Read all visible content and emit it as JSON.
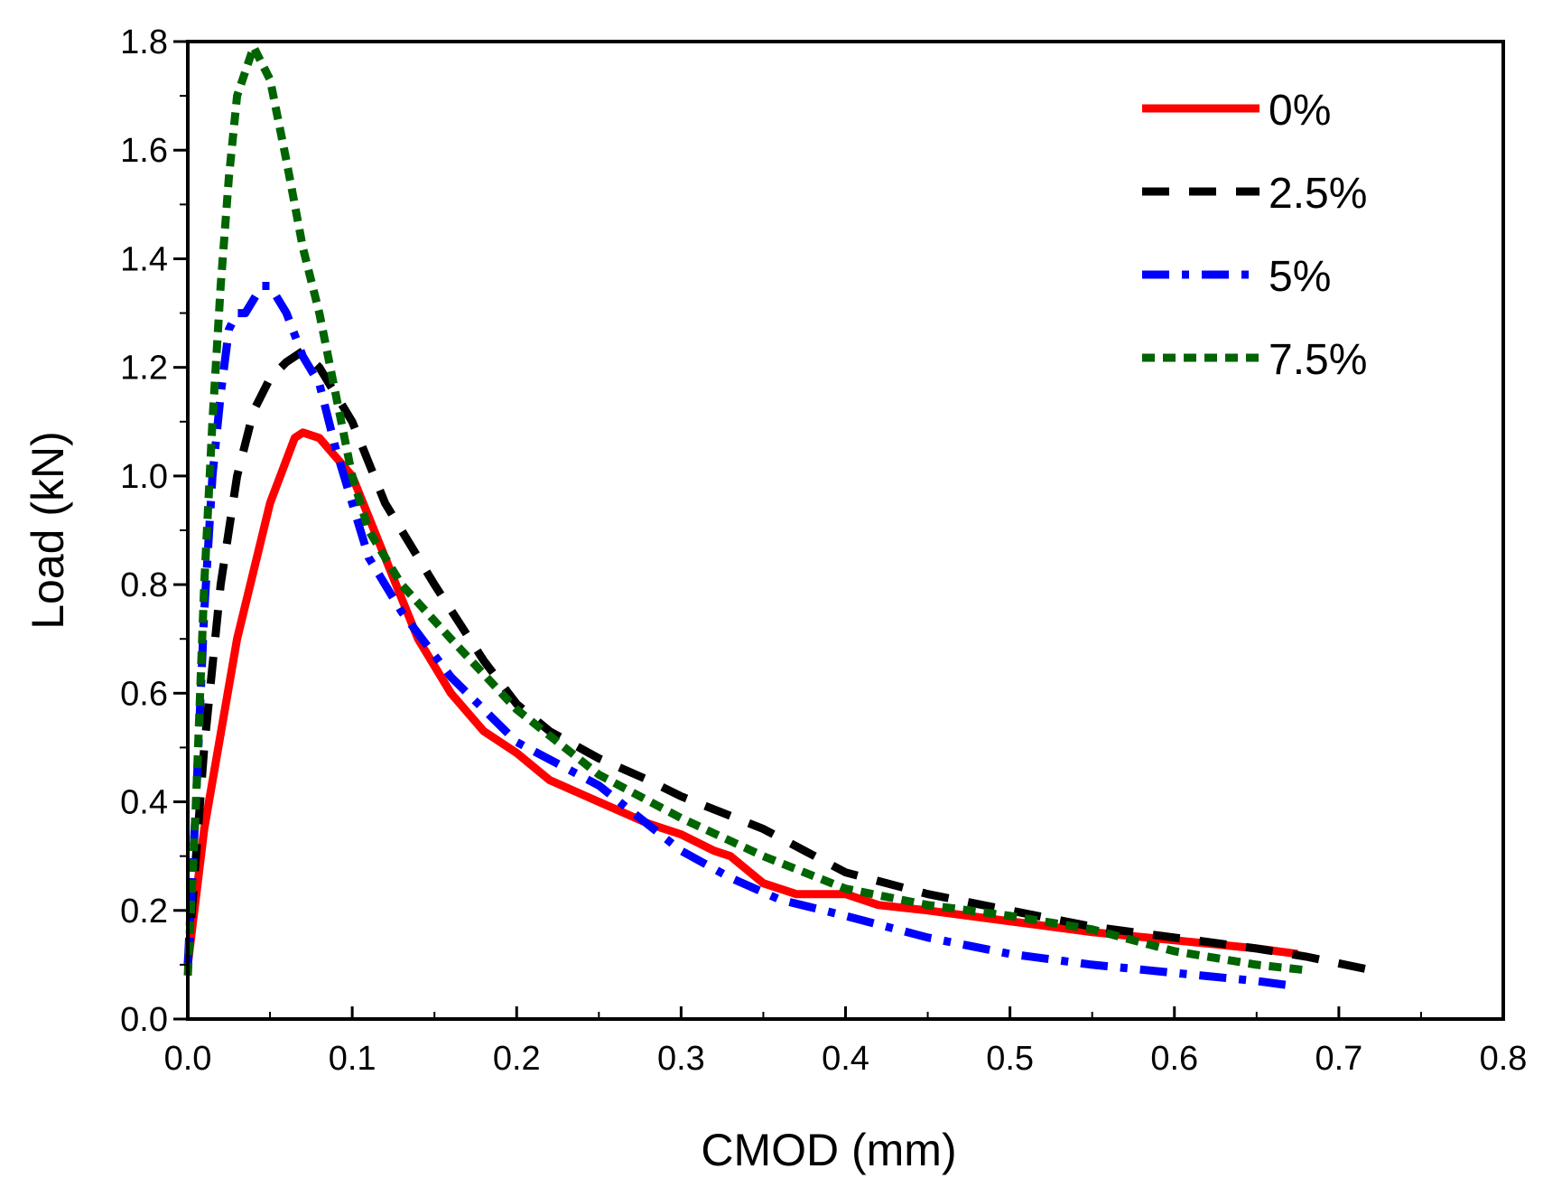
{
  "chart_data": {
    "type": "line",
    "title": "",
    "xlabel": "CMOD (mm)",
    "ylabel": "Load (kN)",
    "xlim": [
      0.0,
      0.8
    ],
    "ylim": [
      0.0,
      1.8
    ],
    "xticks": [
      "0.0",
      "0.1",
      "0.2",
      "0.3",
      "0.4",
      "0.5",
      "0.6",
      "0.7",
      "0.8"
    ],
    "yticks": [
      "0.0",
      "0.2",
      "0.4",
      "0.6",
      "0.8",
      "1.0",
      "1.2",
      "1.4",
      "1.6",
      "1.8"
    ],
    "grid": false,
    "legend_position": "top-right",
    "series": [
      {
        "name": "0%",
        "color": "#ff0000",
        "style": "solid",
        "x": [
          0,
          0.01,
          0.03,
          0.05,
          0.065,
          0.07,
          0.08,
          0.1,
          0.12,
          0.14,
          0.16,
          0.18,
          0.2,
          0.22,
          0.25,
          0.28,
          0.3,
          0.32,
          0.33,
          0.35,
          0.37,
          0.4,
          0.42,
          0.45,
          0.5,
          0.55,
          0.6,
          0.65,
          0.675
        ],
        "y": [
          0.1,
          0.35,
          0.7,
          0.95,
          1.07,
          1.08,
          1.07,
          1.0,
          0.85,
          0.7,
          0.6,
          0.53,
          0.49,
          0.44,
          0.4,
          0.36,
          0.34,
          0.31,
          0.3,
          0.25,
          0.23,
          0.23,
          0.21,
          0.2,
          0.18,
          0.16,
          0.145,
          0.13,
          0.12
        ]
      },
      {
        "name": "2.5%",
        "color": "#000000",
        "style": "dash",
        "x": [
          0,
          0.005,
          0.01,
          0.02,
          0.03,
          0.04,
          0.05,
          0.06,
          0.07,
          0.08,
          0.1,
          0.12,
          0.15,
          0.18,
          0.2,
          0.22,
          0.25,
          0.28,
          0.3,
          0.35,
          0.4,
          0.45,
          0.5,
          0.55,
          0.6,
          0.65,
          0.68,
          0.72
        ],
        "y": [
          0.1,
          0.3,
          0.5,
          0.8,
          1.0,
          1.12,
          1.18,
          1.21,
          1.23,
          1.2,
          1.1,
          0.95,
          0.8,
          0.66,
          0.58,
          0.53,
          0.48,
          0.44,
          0.41,
          0.35,
          0.27,
          0.23,
          0.2,
          0.17,
          0.15,
          0.13,
          0.115,
          0.09
        ]
      },
      {
        "name": "5%",
        "color": "#0000ff",
        "style": "dashdot",
        "x": [
          0,
          0.005,
          0.01,
          0.015,
          0.02,
          0.025,
          0.03,
          0.035,
          0.045,
          0.05,
          0.06,
          0.07,
          0.08,
          0.09,
          0.1,
          0.11,
          0.13,
          0.16,
          0.2,
          0.25,
          0.3,
          0.33,
          0.36,
          0.4,
          0.45,
          0.5,
          0.55,
          0.6,
          0.65,
          0.675
        ],
        "y": [
          0.1,
          0.4,
          0.75,
          1.0,
          1.15,
          1.27,
          1.3,
          1.3,
          1.35,
          1.35,
          1.3,
          1.22,
          1.17,
          1.05,
          0.95,
          0.85,
          0.75,
          0.63,
          0.51,
          0.43,
          0.31,
          0.26,
          0.22,
          0.19,
          0.15,
          0.12,
          0.1,
          0.085,
          0.07,
          0.06
        ]
      },
      {
        "name": "7.5%",
        "color": "#006400",
        "style": "shortdash",
        "x": [
          0,
          0.005,
          0.01,
          0.015,
          0.02,
          0.025,
          0.03,
          0.04,
          0.05,
          0.06,
          0.07,
          0.08,
          0.09,
          0.1,
          0.11,
          0.13,
          0.16,
          0.2,
          0.25,
          0.3,
          0.35,
          0.4,
          0.45,
          0.5,
          0.55,
          0.6,
          0.65,
          0.68
        ],
        "y": [
          0.08,
          0.4,
          0.8,
          1.1,
          1.35,
          1.55,
          1.7,
          1.79,
          1.73,
          1.58,
          1.42,
          1.3,
          1.15,
          1.0,
          0.9,
          0.8,
          0.7,
          0.57,
          0.45,
          0.37,
          0.3,
          0.24,
          0.21,
          0.19,
          0.165,
          0.125,
          0.1,
          0.09
        ]
      }
    ]
  }
}
